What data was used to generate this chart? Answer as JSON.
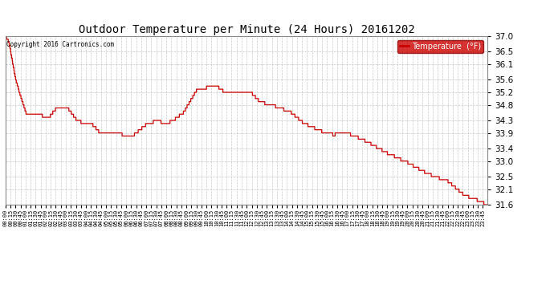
{
  "title": "Outdoor Temperature per Minute (24 Hours) 20161202",
  "copyright": "Copyright 2016 Cartronics.com",
  "legend_label": "Temperature  (°F)",
  "line_color": "#cc0000",
  "background_color": "#ffffff",
  "plot_bg_color": "#ffffff",
  "grid_color": "#bbbbbb",
  "ylim": [
    31.6,
    37.0
  ],
  "yticks": [
    31.6,
    32.1,
    32.5,
    33.0,
    33.4,
    33.9,
    34.3,
    34.8,
    35.2,
    35.6,
    36.1,
    36.5,
    37.0
  ],
  "legend_bg_color": "#cc0000",
  "legend_text_color": "#ffffff"
}
